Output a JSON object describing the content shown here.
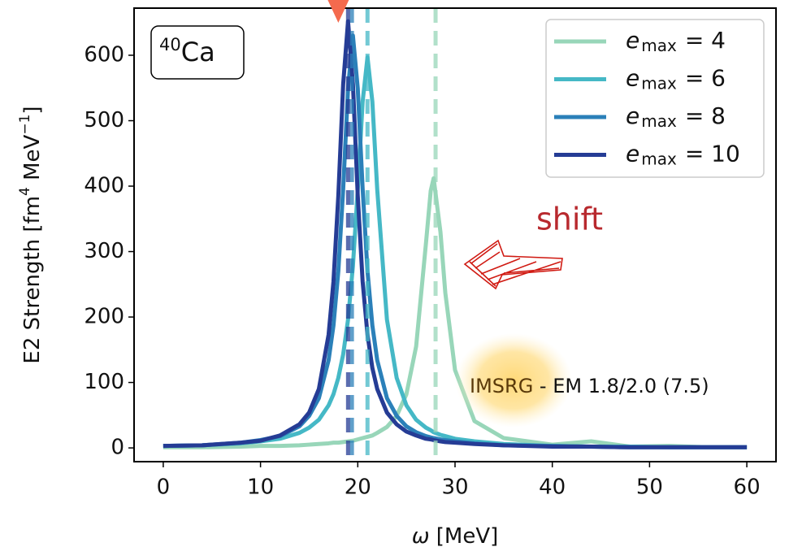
{
  "chart_data": {
    "type": "line",
    "x": [
      0,
      4,
      8,
      10,
      12,
      14,
      15,
      16,
      17,
      17.5,
      18,
      18.5,
      19,
      19.5,
      20,
      20.5,
      21,
      21.5,
      22,
      23,
      24,
      25,
      26,
      27,
      27.5,
      27.8,
      28.5,
      29,
      30,
      32,
      35,
      40,
      44,
      48,
      52,
      56,
      60
    ],
    "series": [
      {
        "name": [
          "e",
          "max",
          "= 4"
        ],
        "color": "#98d6b9",
        "dashed_x": 28,
        "values": [
          1,
          1,
          2,
          3,
          3,
          4,
          5,
          6,
          7,
          8,
          8,
          9,
          10,
          11,
          13,
          15,
          17,
          19,
          23,
          32,
          49,
          82,
          155,
          311,
          393,
          412,
          330,
          237,
          119,
          41,
          15,
          5,
          10,
          2,
          3,
          1,
          1
        ]
      },
      {
        "name": [
          "e",
          "max",
          "= 6"
        ],
        "color": "#45b8c6",
        "dashed_x": 21,
        "values": [
          3,
          4,
          7,
          10,
          14,
          23,
          31,
          43,
          65,
          82,
          107,
          143,
          196,
          278,
          395,
          529,
          597,
          529,
          395,
          196,
          107,
          65,
          43,
          31,
          27,
          24,
          20,
          18,
          14,
          10,
          6,
          3,
          2,
          2,
          1,
          1,
          1
        ]
      },
      {
        "name": [
          "e",
          "max",
          "= 8"
        ],
        "color": "#2b80b9",
        "dashed_x": 19.4,
        "values": [
          3,
          4,
          8,
          12,
          18,
          33,
          49,
          76,
          134,
          187,
          270,
          396,
          549,
          630,
          549,
          396,
          270,
          187,
          134,
          76,
          49,
          33,
          24,
          18,
          16,
          15,
          13,
          12,
          10,
          7,
          4,
          3,
          2,
          1,
          1,
          1,
          1
        ]
      },
      {
        "name": [
          "e",
          "max",
          "= 10"
        ],
        "color": "#253c95",
        "dashed_x": 19,
        "values": [
          3,
          4,
          8,
          11,
          19,
          36,
          54,
          90,
          173,
          254,
          385,
          556,
          652,
          556,
          385,
          254,
          173,
          122,
          90,
          54,
          36,
          25,
          19,
          14,
          13,
          12,
          10,
          9,
          8,
          6,
          4,
          2,
          2,
          1,
          1,
          1,
          1
        ]
      }
    ],
    "xlabel": [
      "ω",
      " [MeV]"
    ],
    "ylabel": [
      "E2 Strength [fm",
      "4",
      " MeV",
      "−1",
      "]"
    ],
    "nucleus": [
      "40",
      "Ca"
    ],
    "annotation_shift": "shift",
    "annotation_method": [
      "IMSRG",
      " - EM 1.8/2.0 (7.5)"
    ],
    "marker": {
      "x": 18,
      "color": "#f46a4e"
    },
    "xlim": [
      -3,
      63
    ],
    "ylim": [
      -21,
      672
    ],
    "xticks": [
      0,
      10,
      20,
      30,
      40,
      50,
      60
    ],
    "yticks": [
      0,
      100,
      200,
      300,
      400,
      500,
      600
    ],
    "legend": "upper right"
  }
}
